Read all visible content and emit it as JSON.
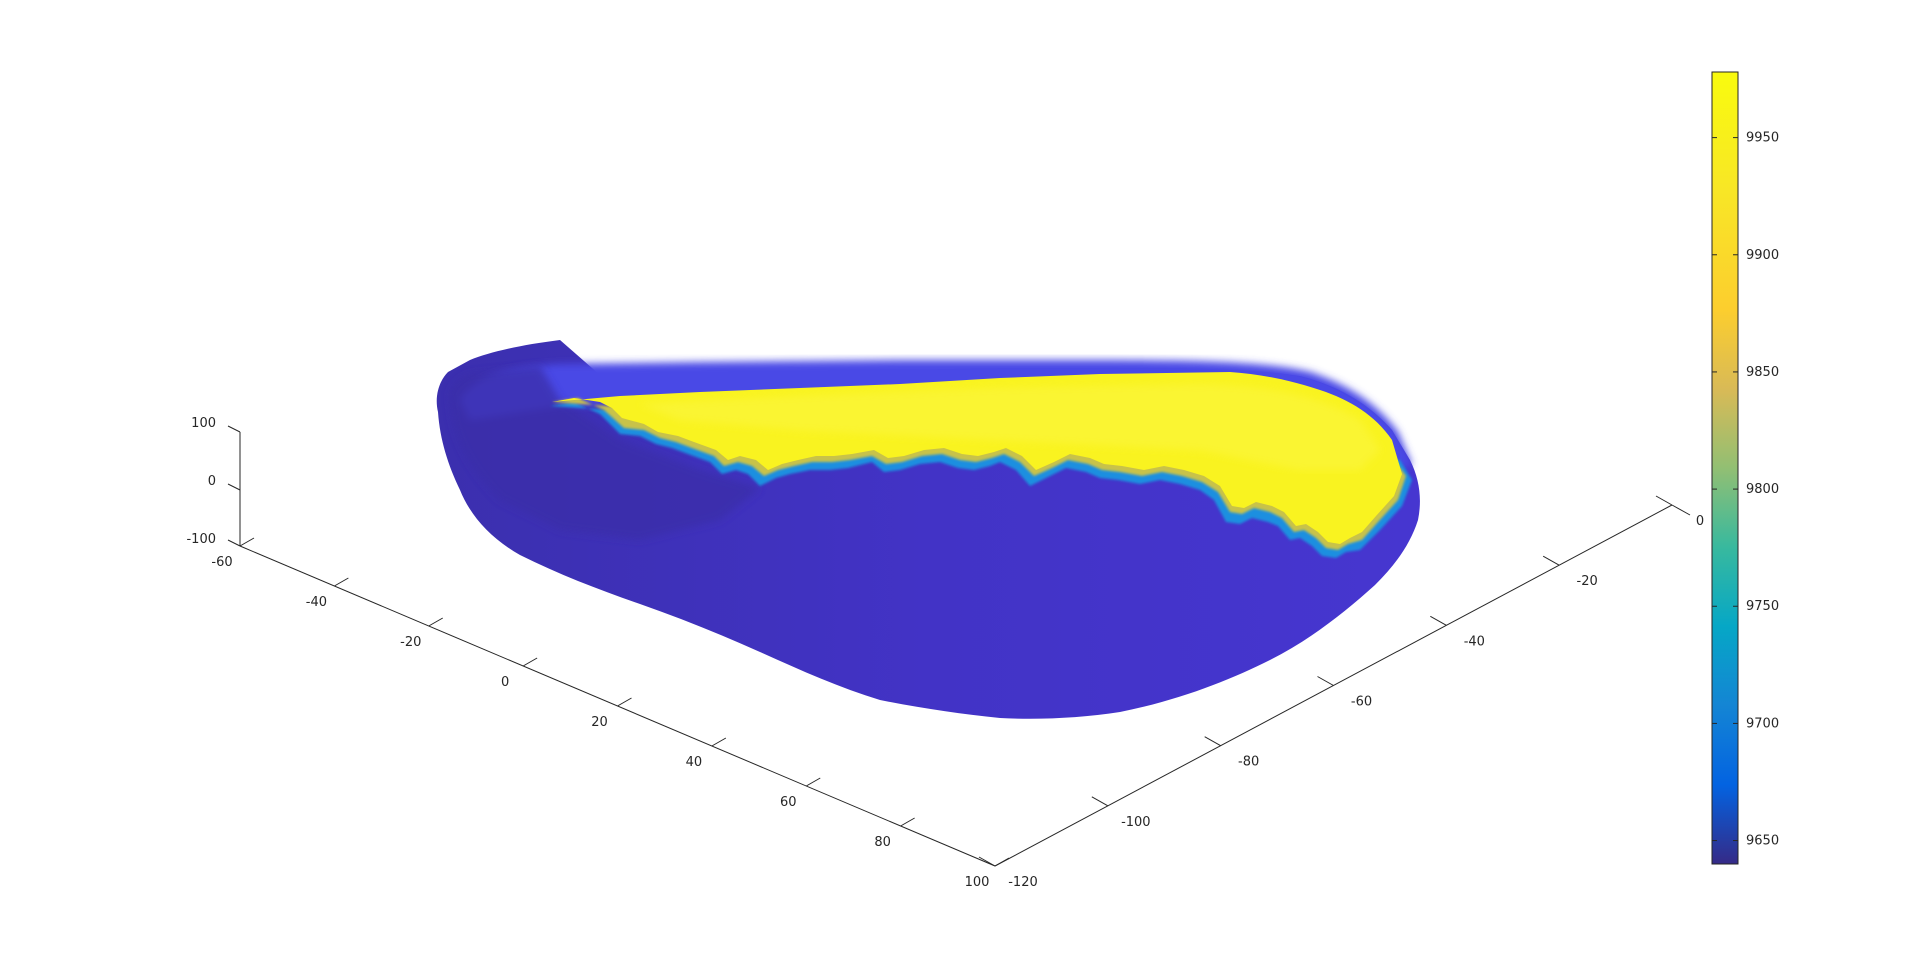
{
  "chart_data": {
    "type": "surface3d",
    "title": "",
    "xlabel": "",
    "ylabel": "",
    "zlabel": "",
    "x_axis": {
      "ticks": [
        -60,
        -40,
        -20,
        0,
        20,
        40,
        60,
        80,
        100
      ],
      "range": [
        -60,
        100
      ]
    },
    "y_axis": {
      "ticks": [
        -120,
        -100,
        -80,
        -60,
        -40,
        -20,
        0
      ],
      "range": [
        -120,
        0
      ]
    },
    "z_axis": {
      "ticks": [
        -100,
        0,
        100
      ],
      "range": [
        -100,
        100
      ]
    },
    "colorbar": {
      "colormap": "parula",
      "location": "right",
      "ticks": [
        9650,
        9700,
        9750,
        9800,
        9850,
        9900,
        9950
      ],
      "range": [
        9640,
        9978
      ]
    },
    "surface": {
      "shape": "closed blob",
      "value_range": [
        9640,
        9978
      ],
      "regions": [
        {
          "area": "upper crest",
          "approx_value": 9975,
          "color": "#f9f320"
        },
        {
          "area": "lower body",
          "approx_value": 9650,
          "color": "#4433c8"
        }
      ]
    },
    "grid": false,
    "legend": "none"
  }
}
